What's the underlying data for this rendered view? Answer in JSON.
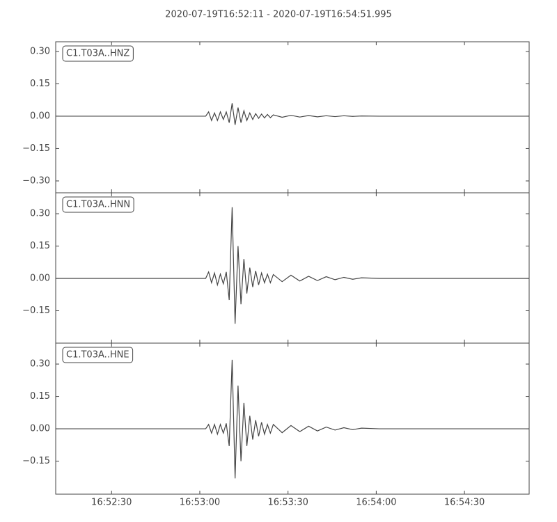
{
  "title": "2020-07-19T16:52:11  -  2020-07-19T16:54:51.995",
  "chart_data": [
    {
      "type": "line",
      "label": "C1.T03A..HNZ",
      "color": "#444444",
      "xlim": [
        "16:52:11",
        "16:54:51.995"
      ],
      "xticks": [
        "16:52:30",
        "16:53:00",
        "16:53:30",
        "16:54:00",
        "16:54:30"
      ],
      "ylim": [
        -0.355,
        0.345
      ],
      "yticks": [
        {
          "value": 0.3,
          "label": "0.30"
        },
        {
          "value": 0.15,
          "label": "0.15"
        },
        {
          "value": 0,
          "label": "0.00"
        },
        {
          "value": -0.15,
          "label": "−0.15"
        },
        {
          "value": -0.3,
          "label": "−0.30"
        }
      ],
      "x": [
        "16:52:11",
        "16:53:02",
        "16:53:03",
        "16:53:04",
        "16:53:05",
        "16:53:06",
        "16:53:07",
        "16:53:08",
        "16:53:09",
        "16:53:10",
        "16:53:11",
        "16:53:12",
        "16:53:13",
        "16:53:14",
        "16:53:15",
        "16:53:16",
        "16:53:17",
        "16:53:18",
        "16:53:19",
        "16:53:20",
        "16:53:21",
        "16:53:22",
        "16:53:23",
        "16:53:24",
        "16:53:25",
        "16:53:28",
        "16:53:31",
        "16:53:34",
        "16:53:37",
        "16:53:40",
        "16:53:43",
        "16:53:46",
        "16:53:49",
        "16:53:52",
        "16:53:55",
        "16:54:01",
        "16:54:51.995"
      ],
      "values": [
        0,
        0,
        0.02,
        -0.02,
        0.015,
        -0.02,
        0.02,
        -0.015,
        0.02,
        -0.03,
        0.06,
        -0.04,
        0.04,
        -0.03,
        0.025,
        -0.02,
        0.015,
        -0.015,
        0.012,
        -0.01,
        0.01,
        -0.008,
        0.008,
        -0.007,
        0.006,
        -0.005,
        0.004,
        -0.004,
        0.003,
        -0.003,
        0.002,
        -0.002,
        0.002,
        -0.001,
        0.001,
        0,
        0
      ]
    },
    {
      "type": "line",
      "label": "C1.T03A..HNN",
      "color": "#444444",
      "xlim": [
        "16:52:11",
        "16:54:51.995"
      ],
      "xticks": [
        "16:52:30",
        "16:53:00",
        "16:53:30",
        "16:54:00",
        "16:54:30"
      ],
      "ylim": [
        -0.3,
        0.397
      ],
      "yticks": [
        {
          "value": 0.3,
          "label": "0.30"
        },
        {
          "value": 0.15,
          "label": "0.15"
        },
        {
          "value": 0,
          "label": "0.00"
        },
        {
          "value": -0.15,
          "label": "−0.15"
        }
      ],
      "x": [
        "16:52:11",
        "16:53:02",
        "16:53:03",
        "16:53:04",
        "16:53:05",
        "16:53:06",
        "16:53:07",
        "16:53:08",
        "16:53:09",
        "16:53:10",
        "16:53:11",
        "16:53:12",
        "16:53:13",
        "16:53:14",
        "16:53:15",
        "16:53:16",
        "16:53:17",
        "16:53:18",
        "16:53:19",
        "16:53:20",
        "16:53:21",
        "16:53:22",
        "16:53:23",
        "16:53:24",
        "16:53:25",
        "16:53:28",
        "16:53:31",
        "16:53:34",
        "16:53:37",
        "16:53:40",
        "16:53:43",
        "16:53:46",
        "16:53:49",
        "16:53:52",
        "16:53:55",
        "16:54:01",
        "16:54:51.995"
      ],
      "values": [
        0,
        0,
        0.03,
        -0.02,
        0.025,
        -0.03,
        0.02,
        -0.025,
        0.03,
        -0.1,
        0.33,
        -0.21,
        0.15,
        -0.12,
        0.09,
        -0.07,
        0.05,
        -0.04,
        0.035,
        -0.03,
        0.025,
        -0.02,
        0.02,
        -0.02,
        0.018,
        -0.015,
        0.015,
        -0.012,
        0.01,
        -0.01,
        0.008,
        -0.006,
        0.005,
        -0.004,
        0.003,
        0,
        0
      ]
    },
    {
      "type": "line",
      "label": "C1.T03A..HNE",
      "color": "#444444",
      "xlim": [
        "16:52:11",
        "16:54:51.995"
      ],
      "xticks": [
        "16:52:30",
        "16:53:00",
        "16:53:30",
        "16:54:00",
        "16:54:30"
      ],
      "ylim": [
        -0.303,
        0.397
      ],
      "yticks": [
        {
          "value": 0.3,
          "label": "0.30"
        },
        {
          "value": 0.15,
          "label": "0.15"
        },
        {
          "value": 0,
          "label": "0.00"
        },
        {
          "value": -0.15,
          "label": "−0.15"
        }
      ],
      "x": [
        "16:52:11",
        "16:53:02",
        "16:53:03",
        "16:53:04",
        "16:53:05",
        "16:53:06",
        "16:53:07",
        "16:53:08",
        "16:53:09",
        "16:53:10",
        "16:53:11",
        "16:53:12",
        "16:53:13",
        "16:53:14",
        "16:53:15",
        "16:53:16",
        "16:53:17",
        "16:53:18",
        "16:53:19",
        "16:53:20",
        "16:53:21",
        "16:53:22",
        "16:53:23",
        "16:53:24",
        "16:53:25",
        "16:53:28",
        "16:53:31",
        "16:53:34",
        "16:53:37",
        "16:53:40",
        "16:53:43",
        "16:53:46",
        "16:53:49",
        "16:53:52",
        "16:53:55",
        "16:54:01",
        "16:54:51.995"
      ],
      "values": [
        0,
        0,
        0.02,
        -0.02,
        0.02,
        -0.025,
        0.02,
        -0.02,
        0.025,
        -0.08,
        0.32,
        -0.23,
        0.2,
        -0.15,
        0.12,
        -0.08,
        0.06,
        -0.05,
        0.04,
        -0.035,
        0.03,
        -0.025,
        0.02,
        -0.02,
        0.02,
        -0.018,
        0.015,
        -0.013,
        0.012,
        -0.01,
        0.008,
        -0.006,
        0.005,
        -0.004,
        0.003,
        0,
        0
      ]
    }
  ]
}
